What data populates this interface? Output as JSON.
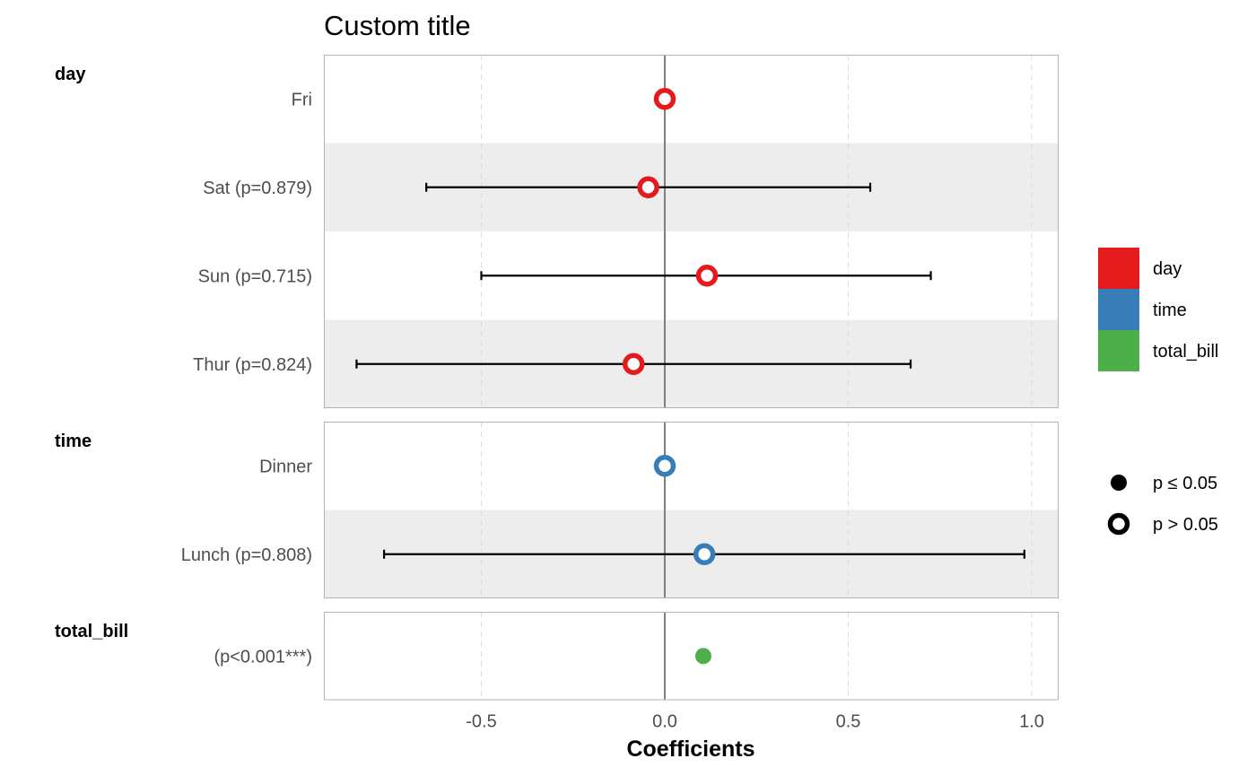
{
  "chart_data": {
    "type": "scatter",
    "title": "Custom title",
    "xlabel": "Coefficients",
    "xlim": [
      -0.95,
      1.07
    ],
    "x_ticks": [
      -0.5,
      0.0,
      0.5,
      1.0
    ],
    "x_tick_labels": [
      "-0.5",
      "0.0",
      "0.5",
      "1.0"
    ],
    "grid": true,
    "reference_line": 0,
    "groups": [
      {
        "name": "day",
        "color": "#e41a1c",
        "rows": [
          {
            "label": "Fri",
            "estimate": 0.0,
            "ci": null,
            "significant": false
          },
          {
            "label": "Sat (p=0.879)",
            "estimate": -0.045,
            "ci": [
              -0.65,
              0.56
            ],
            "significant": false
          },
          {
            "label": "Sun (p=0.715)",
            "estimate": 0.115,
            "ci": [
              -0.5,
              0.725
            ],
            "significant": false
          },
          {
            "label": "Thur (p=0.824)",
            "estimate": -0.085,
            "ci": [
              -0.84,
              0.67
            ],
            "significant": false
          }
        ]
      },
      {
        "name": "time",
        "color": "#377eb8",
        "rows": [
          {
            "label": "Dinner",
            "estimate": 0.0,
            "ci": null,
            "significant": false
          },
          {
            "label": "Lunch (p=0.808)",
            "estimate": 0.108,
            "ci": [
              -0.765,
              0.98
            ],
            "significant": false
          }
        ]
      },
      {
        "name": "total_bill",
        "color": "#4daf4a",
        "rows": [
          {
            "label": "(p<0.001***)",
            "estimate": 0.105,
            "ci": null,
            "significant": true
          }
        ]
      }
    ],
    "legend": {
      "position": "right",
      "color_items": [
        {
          "label": "day",
          "color": "#e41a1c"
        },
        {
          "label": "time",
          "color": "#377eb8"
        },
        {
          "label": "total_bill",
          "color": "#4daf4a"
        }
      ],
      "shape_items": [
        {
          "label": "p ≤ 0.05",
          "filled": true
        },
        {
          "label": "p > 0.05",
          "filled": false
        }
      ]
    }
  }
}
